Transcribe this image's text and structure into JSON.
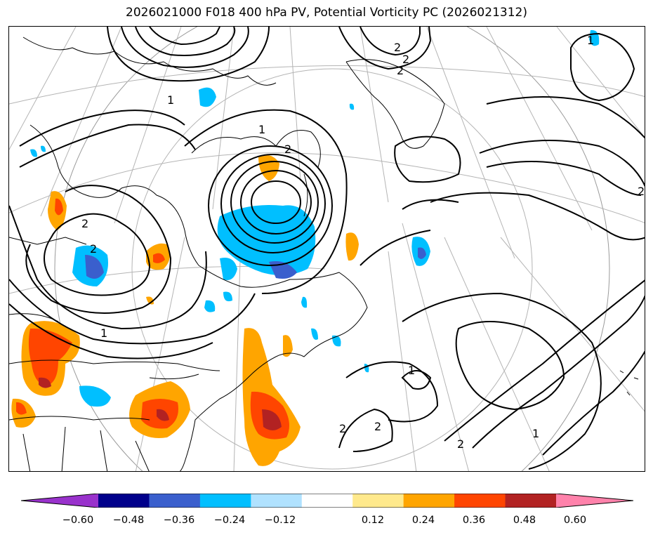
{
  "title": "2026021000 F018 400 hPa PV, Potential Vorticity PC (2026021312)",
  "contour_labels": [
    "1",
    "1",
    "1",
    "1",
    "1",
    "1",
    "2",
    "2",
    "2",
    "2",
    "2",
    "2",
    "2",
    "2",
    "2",
    "2"
  ],
  "colorbar": {
    "tick_labels": [
      "−0.60",
      "−0.48",
      "−0.36",
      "−0.24",
      "−0.12",
      "0.12",
      "0.24",
      "0.36",
      "0.48",
      "0.60"
    ],
    "colors": [
      "#9932cc",
      "#00008b",
      "#3a5fcd",
      "#00bfff",
      "#b0e2ff",
      "#ffffff",
      "#ffe98c",
      "#ffa500",
      "#ff4500",
      "#b22222",
      "#ff82ab"
    ]
  },
  "colors": {
    "neg_light": "#00bfff",
    "neg_mid": "#3a5fcd",
    "pos_light": "#ffa500",
    "pos_mid": "#ff4500",
    "pos_strong": "#b22222"
  }
}
